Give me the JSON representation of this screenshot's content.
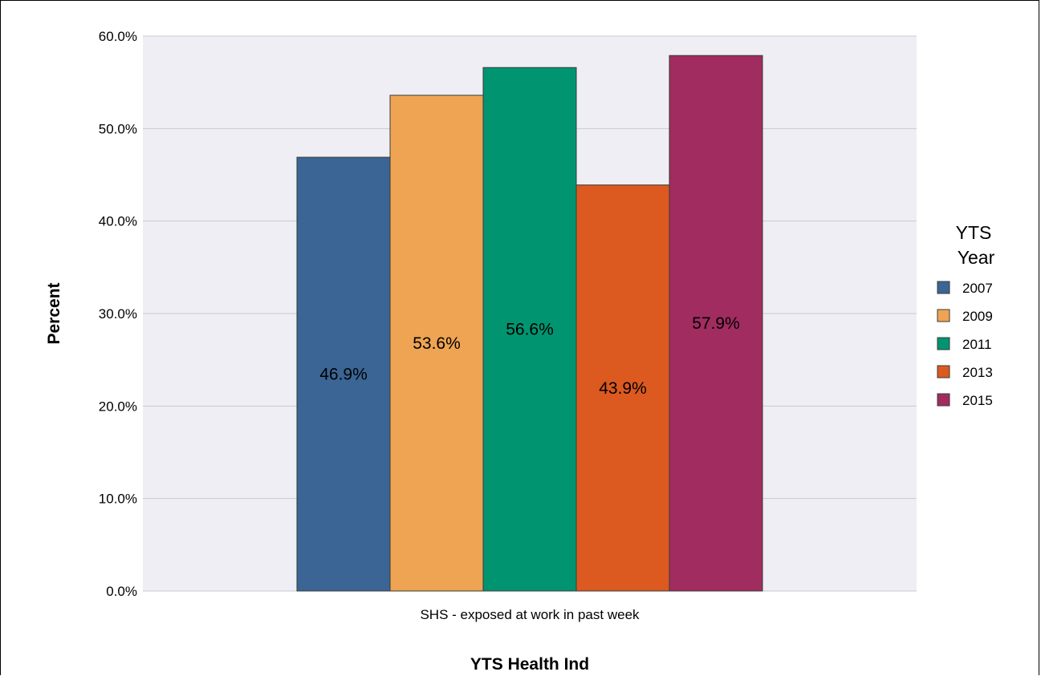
{
  "chart_data": {
    "type": "bar",
    "categories": [
      "SHS - exposed at work in past week"
    ],
    "series": [
      {
        "name": "2007",
        "values": [
          46.9
        ],
        "label": "46.9%",
        "color": "#3a6595"
      },
      {
        "name": "2009",
        "values": [
          53.6
        ],
        "label": "53.6%",
        "color": "#eea453"
      },
      {
        "name": "2011",
        "values": [
          56.6
        ],
        "label": "56.6%",
        "color": "#009570"
      },
      {
        "name": "2013",
        "values": [
          43.9
        ],
        "label": "43.9%",
        "color": "#dc5920"
      },
      {
        "name": "2015",
        "values": [
          57.9
        ],
        "label": "57.9%",
        "color": "#a12c60"
      }
    ],
    "title": "",
    "xlabel": "YTS Health Ind",
    "ylabel": "Percent",
    "ylim": [
      0,
      60
    ],
    "yticks": [
      0,
      10,
      20,
      30,
      40,
      50,
      60
    ],
    "ytick_labels": [
      "0.0%",
      "10.0%",
      "20.0%",
      "30.0%",
      "40.0%",
      "50.0%",
      "60.0%"
    ],
    "grid": true,
    "plot_background": "#efeef4",
    "legend": {
      "title_line1": "YTS",
      "title_line2": "Year",
      "placement": "right"
    }
  }
}
